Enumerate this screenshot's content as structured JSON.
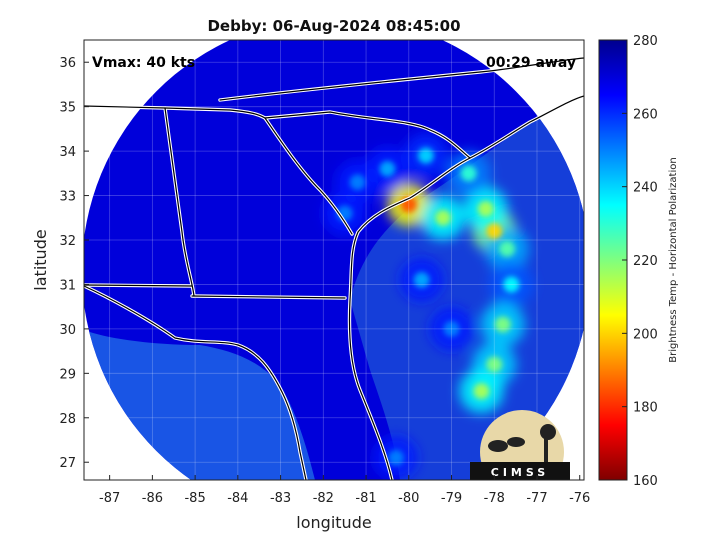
{
  "chart_data": {
    "type": "heatmap",
    "title": "Debby: 06-Aug-2024 08:45:00",
    "xlabel": "longitude",
    "ylabel": "latitude",
    "xlim": [
      -87.6,
      -75.9
    ],
    "ylim": [
      26.6,
      36.5
    ],
    "xticks": [
      -87,
      -86,
      -85,
      -84,
      -83,
      -82,
      -81,
      -80,
      -79,
      -78,
      -77,
      -76
    ],
    "yticks": [
      27,
      28,
      29,
      30,
      31,
      32,
      33,
      34,
      35,
      36
    ],
    "grid": true,
    "annotations": {
      "vmax": "Vmax: 40 kts",
      "time_away": "00:29 away"
    },
    "storm_center": {
      "lon": -80.0,
      "lat": 32.8
    },
    "colorbar": {
      "label": "Brightness Temp - Horizontal Polarization",
      "range": [
        160,
        280
      ],
      "ticks": [
        160,
        180,
        200,
        220,
        240,
        260,
        280
      ],
      "colors": [
        "#7f0000",
        "#ff0000",
        "#ff8000",
        "#ffff00",
        "#7fff7f",
        "#00ffff",
        "#0080ff",
        "#0000ff",
        "#00008f"
      ]
    },
    "swath": {
      "center_lon": -81.7,
      "center_lat": 31.3,
      "radius_deg": 5.95,
      "background_value": 270
    },
    "features": [
      {
        "lon": -80.0,
        "lat": 32.8,
        "value": 185
      },
      {
        "lon": -79.2,
        "lat": 32.5,
        "value": 215
      },
      {
        "lon": -78.0,
        "lat": 32.2,
        "value": 200
      },
      {
        "lon": -78.2,
        "lat": 32.7,
        "value": 215
      },
      {
        "lon": -78.6,
        "lat": 33.5,
        "value": 230
      },
      {
        "lon": -79.6,
        "lat": 33.9,
        "value": 240
      },
      {
        "lon": -80.5,
        "lat": 33.6,
        "value": 245
      },
      {
        "lon": -81.2,
        "lat": 33.3,
        "value": 250
      },
      {
        "lon": -81.5,
        "lat": 32.6,
        "value": 250
      },
      {
        "lon": -77.7,
        "lat": 31.8,
        "value": 225
      },
      {
        "lon": -77.6,
        "lat": 31.0,
        "value": 235
      },
      {
        "lon": -77.8,
        "lat": 30.1,
        "value": 220
      },
      {
        "lon": -78.0,
        "lat": 29.2,
        "value": 220
      },
      {
        "lon": -78.3,
        "lat": 28.6,
        "value": 215
      },
      {
        "lon": -79.7,
        "lat": 31.1,
        "value": 245
      },
      {
        "lon": -79.0,
        "lat": 30.0,
        "value": 250
      },
      {
        "lon": -80.3,
        "lat": 27.1,
        "value": 250
      }
    ]
  },
  "logo": {
    "text": "CIMSS"
  }
}
